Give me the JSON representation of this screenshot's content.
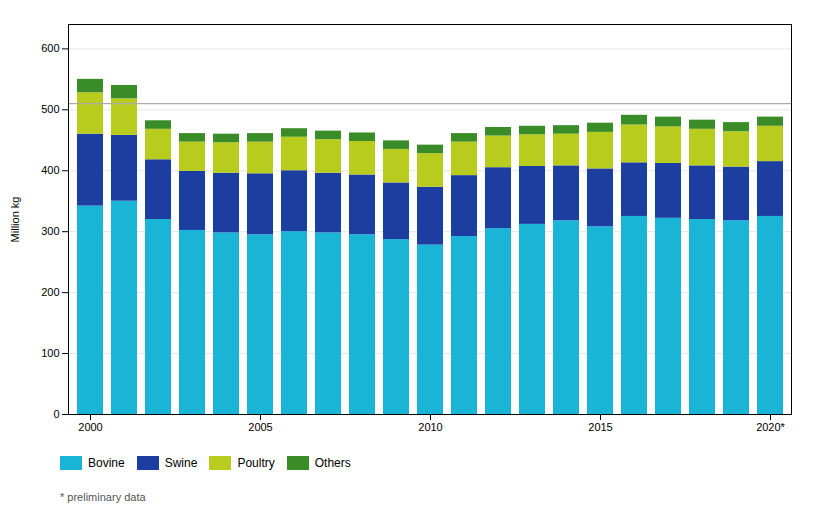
{
  "chart_data": {
    "type": "bar",
    "stacked": true,
    "categories": [
      "2000",
      null,
      null,
      null,
      null,
      "2005",
      null,
      null,
      null,
      null,
      "2010",
      null,
      null,
      null,
      null,
      "2015",
      null,
      null,
      null,
      null,
      "2020*"
    ],
    "series": [
      {
        "name": "Bovine",
        "color": "#1ab4d7",
        "values": [
          342,
          350,
          320,
          302,
          298,
          295,
          300,
          298,
          295,
          287,
          278,
          292,
          305,
          312,
          318,
          308,
          325,
          322,
          320,
          318,
          325
        ]
      },
      {
        "name": "Swine",
        "color": "#1c3ea0",
        "values": [
          118,
          108,
          98,
          97,
          98,
          100,
          100,
          98,
          98,
          93,
          95,
          100,
          100,
          95,
          90,
          95,
          88,
          90,
          88,
          88,
          90
        ]
      },
      {
        "name": "Poultry",
        "color": "#b8cc1e",
        "values": [
          68,
          60,
          50,
          48,
          50,
          52,
          55,
          55,
          55,
          55,
          55,
          55,
          52,
          52,
          52,
          60,
          62,
          60,
          60,
          58,
          58
        ]
      },
      {
        "name": "Others",
        "color": "#3a8c28",
        "values": [
          22,
          22,
          14,
          14,
          14,
          14,
          14,
          14,
          14,
          14,
          14,
          14,
          14,
          14,
          14,
          15,
          16,
          16,
          15,
          15,
          15
        ]
      }
    ],
    "ylabel": "Million kg",
    "ylim": [
      0,
      640
    ],
    "yticks": [
      0,
      100,
      200,
      300,
      400,
      500,
      600
    ],
    "grid": true,
    "legend": "lower left",
    "reference_line": 510,
    "footnote": "* preliminary data"
  }
}
